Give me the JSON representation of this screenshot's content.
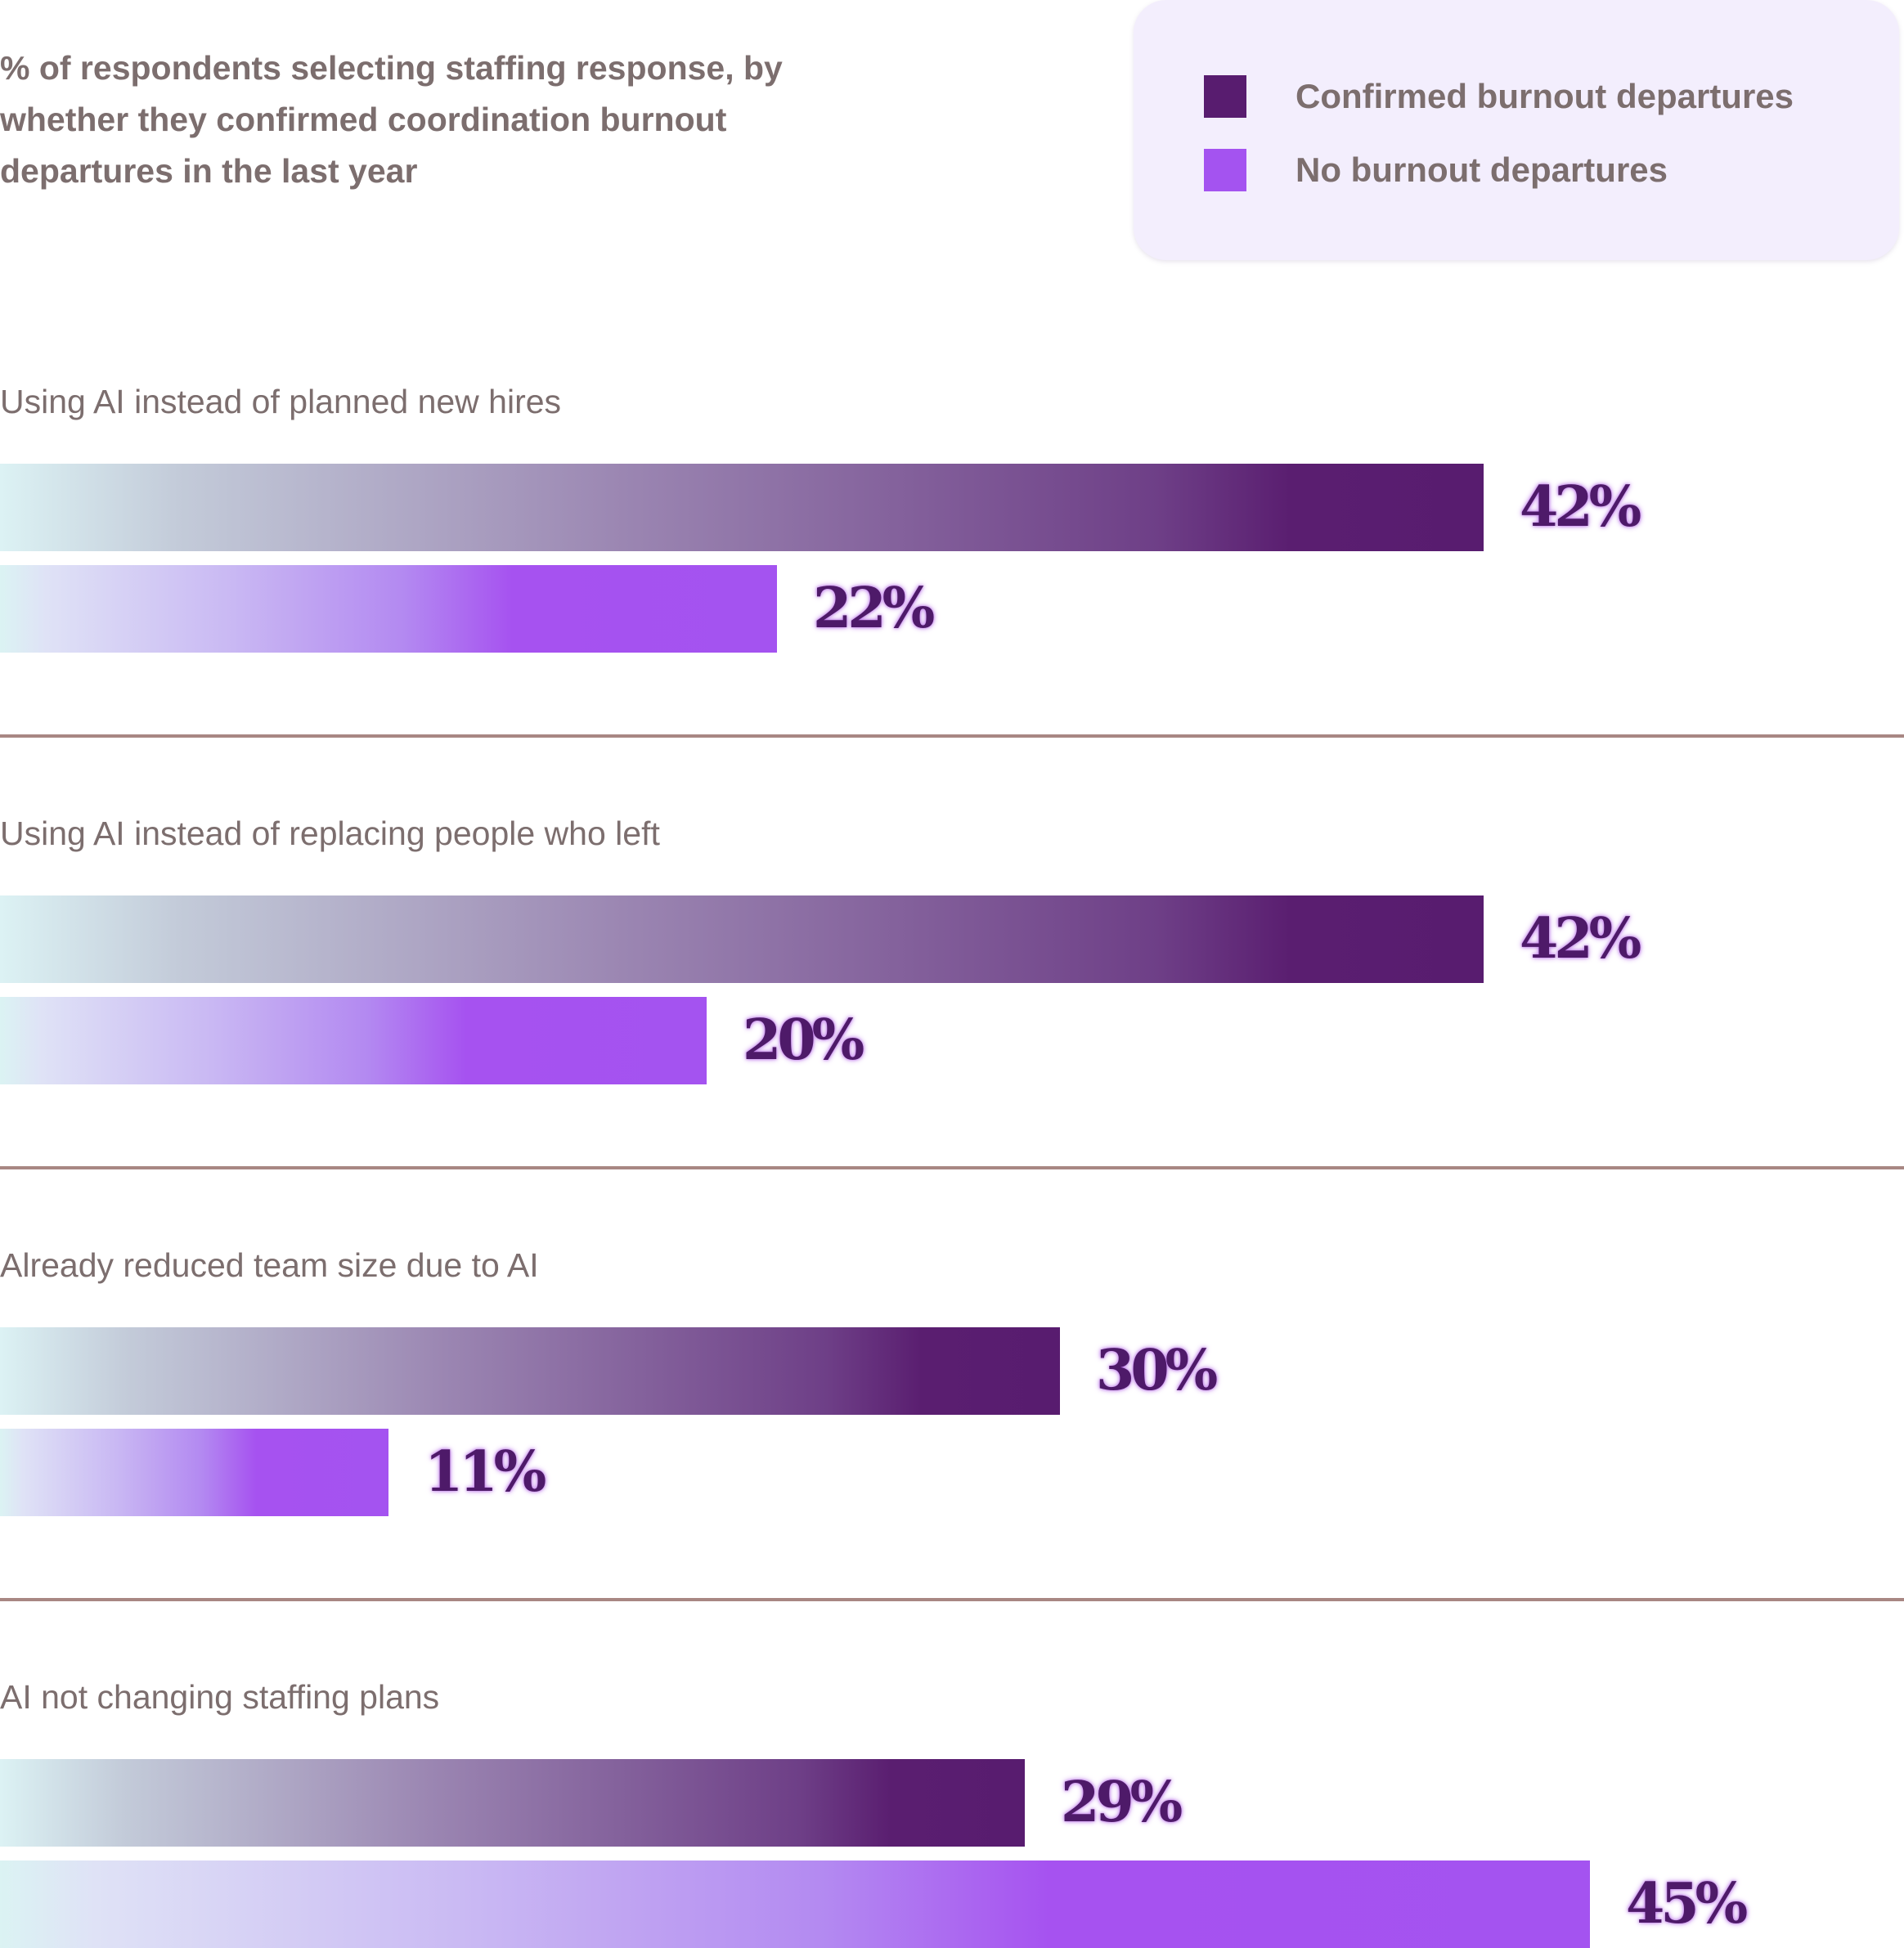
{
  "chart_data": {
    "type": "bar",
    "orientation": "horizontal",
    "subtitle": "% of respondents selecting staffing response, by whether they confirmed coordination burnout departures in the last year",
    "categories": [
      "Using AI instead of planned new hires",
      "Using AI instead of replacing people who left",
      "Already reduced team size due to AI",
      "AI not changing staffing plans"
    ],
    "series": [
      {
        "name": "Confirmed burnout departures",
        "values": [
          42,
          42,
          30,
          29
        ],
        "color": "#581c6f"
      },
      {
        "name": "No burnout departures",
        "values": [
          22,
          20,
          11,
          45
        ],
        "color": "#a453f0"
      }
    ],
    "value_labels": [
      [
        "42%",
        "22%"
      ],
      [
        "42%",
        "20%"
      ],
      [
        "30%",
        "11%"
      ],
      [
        "29%",
        "45%"
      ]
    ],
    "unit": "%",
    "xlim": [
      0,
      45
    ],
    "legend_position": "top-right",
    "grid": false
  },
  "colors": {
    "confirmed": "#581c6f",
    "none": "#a453f0",
    "text": "#7c6e6e",
    "value_text": "#4e1a69",
    "divider": "#a88783",
    "legend_background": "#f3eefd"
  }
}
